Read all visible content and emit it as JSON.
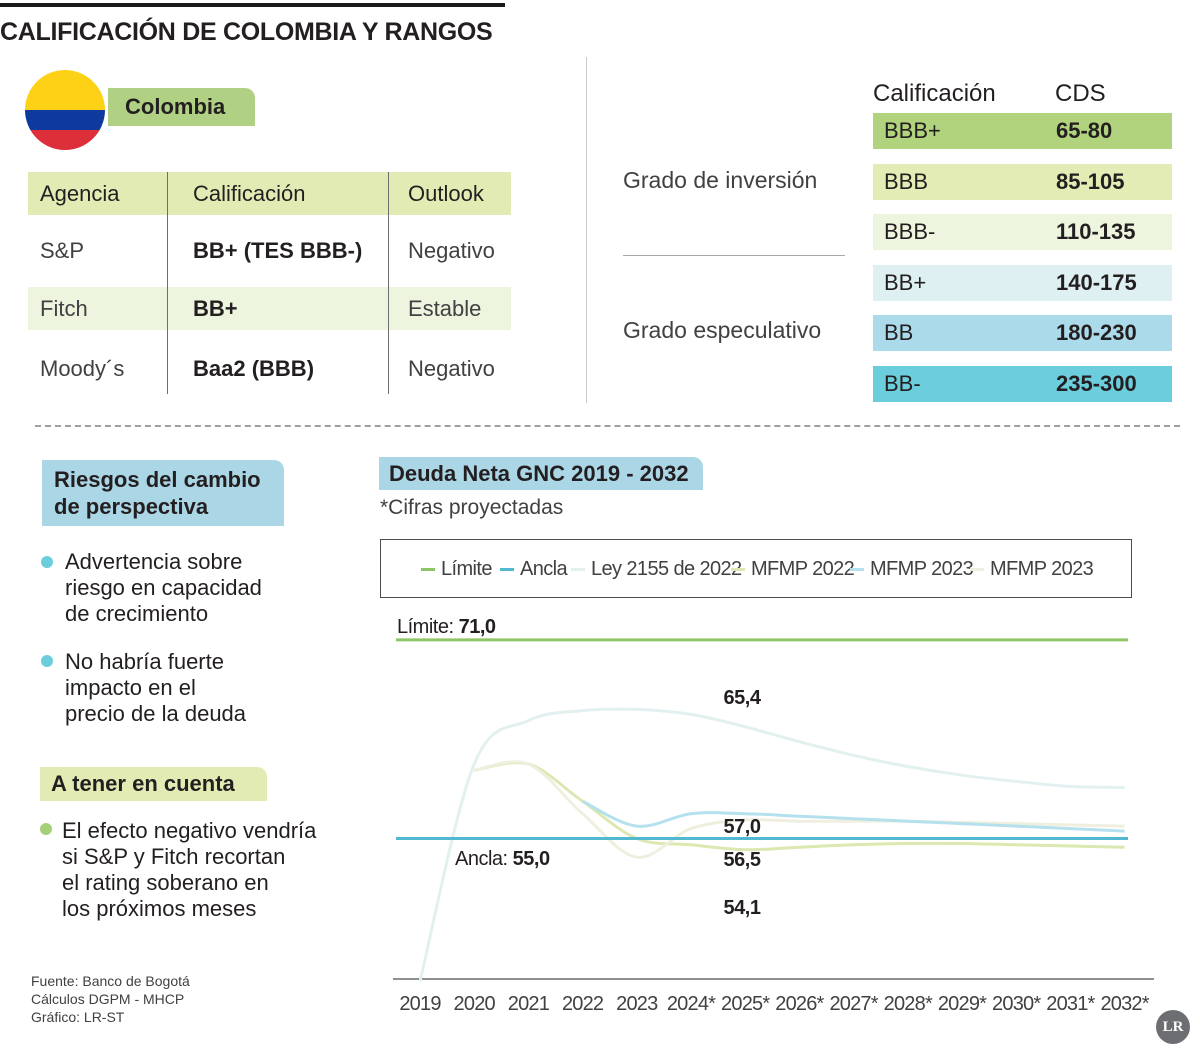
{
  "header": {
    "title": "CALIFICACIÓN DE COLOMBIA Y RANGOS"
  },
  "country": {
    "name": "Colombia",
    "flag_icon": "colombia-flag-icon",
    "flag_colors": [
      "#fcd116",
      "#0d3a9c",
      "#dc2f3a"
    ]
  },
  "agencies": {
    "headers": [
      "Agencia",
      "Calificación",
      "Outlook"
    ],
    "rows": [
      {
        "agency": "S&P",
        "rating": "BB+ (TES BBB-)",
        "outlook": "Negativo"
      },
      {
        "agency": "Fitch",
        "rating": "BB+",
        "outlook": "Estable"
      },
      {
        "agency": "Moody´s",
        "rating": "Baa2 (BBB)",
        "outlook": "Negativo"
      }
    ]
  },
  "ratings": {
    "headers": [
      "Calificación",
      "CDS"
    ],
    "groups": [
      "Grado de inversión",
      "Grado especulativo"
    ],
    "rows": [
      {
        "rating": "BBB+",
        "cds": "65-80",
        "color": "#b1d37d"
      },
      {
        "rating": "BBB",
        "cds": "85-105",
        "color": "#e3ecb4"
      },
      {
        "rating": "BBB-",
        "cds": "110-135",
        "color": "#eef5df"
      },
      {
        "rating": "BB+",
        "cds": "140-175",
        "color": "#def0f1"
      },
      {
        "rating": "BB",
        "cds": "180-230",
        "color": "#abdbea"
      },
      {
        "rating": "BB-",
        "cds": "235-300",
        "color": "#6ccddd"
      }
    ]
  },
  "risks": {
    "title_line1": "Riesgos del cambio",
    "title_line2": "de perspectiva",
    "items": [
      {
        "lines": [
          "Advertencia sobre",
          "riesgo en capacidad",
          "de crecimiento"
        ]
      },
      {
        "lines": [
          "No habría fuerte",
          "impacto en el",
          "precio de la deuda"
        ]
      }
    ]
  },
  "notes": {
    "title": "A tener en cuenta",
    "items": [
      {
        "lines": [
          "El efecto negativo vendría",
          "si S&P y Fitch recortan",
          "el rating soberano en",
          "los próximos meses"
        ]
      }
    ]
  },
  "source": {
    "lines": [
      "Fuente: Banco de Bogotá",
      "Cálculos DGPM - MHCP",
      "Gráfico: LR-ST"
    ],
    "logo": "LR"
  },
  "colors": {
    "limite": "#8ec565",
    "ancla": "#51b8d0",
    "ley2155": "#e2f1ef",
    "mfmp2022": "#dbe8b1",
    "mfmp2023a": "#b5e0ed",
    "mfmp2023b": "#f0efdf"
  },
  "chart_data": {
    "type": "line",
    "title": "Deuda Neta GNC 2019 - 2032",
    "subtitle": "*Cifras proyectadas",
    "xlabel": "",
    "ylabel": "",
    "categories": [
      "2019",
      "2020",
      "2021",
      "2022",
      "2023",
      "2024*",
      "2025*",
      "2026*",
      "2027*",
      "2028*",
      "2029*",
      "2030*",
      "2031*",
      "2032*"
    ],
    "ylim": [
      42,
      73
    ],
    "legend": [
      "Límite",
      "Ancla",
      "Ley 2155 de 2022",
      "MFMP 2022",
      "MFMP 2023",
      "MFMP 2023"
    ],
    "series": [
      {
        "name": "Límite",
        "color_key": "limite",
        "values": [
          71.0,
          71.0,
          71.0,
          71.0,
          71.0,
          71.0,
          71.0,
          71.0,
          71.0,
          71.0,
          71.0,
          71.0,
          71.0,
          71.0
        ]
      },
      {
        "name": "Ancla",
        "color_key": "ancla",
        "values": [
          55.0,
          55.0,
          55.0,
          55.0,
          55.0,
          55.0,
          55.0,
          55.0,
          55.0,
          55.0,
          55.0,
          55.0,
          55.0,
          55.0
        ]
      },
      {
        "name": "Ley 2155 de 2022",
        "color_key": "ley2155",
        "values": [
          43.5,
          61.0,
          64.5,
          65.3,
          65.4,
          65.0,
          64.0,
          62.8,
          61.7,
          60.8,
          60.1,
          59.6,
          59.2,
          59.1
        ]
      },
      {
        "name": "MFMP 2022",
        "color_key": "mfmp2022",
        "values": [
          null,
          60.5,
          61.0,
          58.0,
          55.0,
          54.5,
          54.1,
          54.3,
          54.5,
          54.6,
          54.6,
          54.5,
          54.4,
          54.3
        ]
      },
      {
        "name": "MFMP 2023",
        "color_key": "mfmp2023a",
        "values": [
          null,
          null,
          null,
          58.0,
          56.0,
          57.0,
          57.0,
          56.8,
          56.6,
          56.4,
          56.2,
          56.0,
          55.8,
          55.6
        ]
      },
      {
        "name": "MFMP 2023",
        "color_key": "mfmp2023b",
        "values": [
          null,
          60.5,
          61.0,
          57.0,
          53.5,
          55.8,
          56.5,
          56.4,
          56.4,
          56.4,
          56.3,
          56.2,
          56.1,
          56.0
        ]
      }
    ],
    "annotations": [
      {
        "label": "Límite:",
        "value": "71,0"
      },
      {
        "label": "Ancla:",
        "value": "55,0"
      },
      {
        "label": "",
        "value": "65,4"
      },
      {
        "label": "",
        "value": "57,0"
      },
      {
        "label": "",
        "value": "56,5"
      },
      {
        "label": "",
        "value": "54,1"
      }
    ]
  }
}
